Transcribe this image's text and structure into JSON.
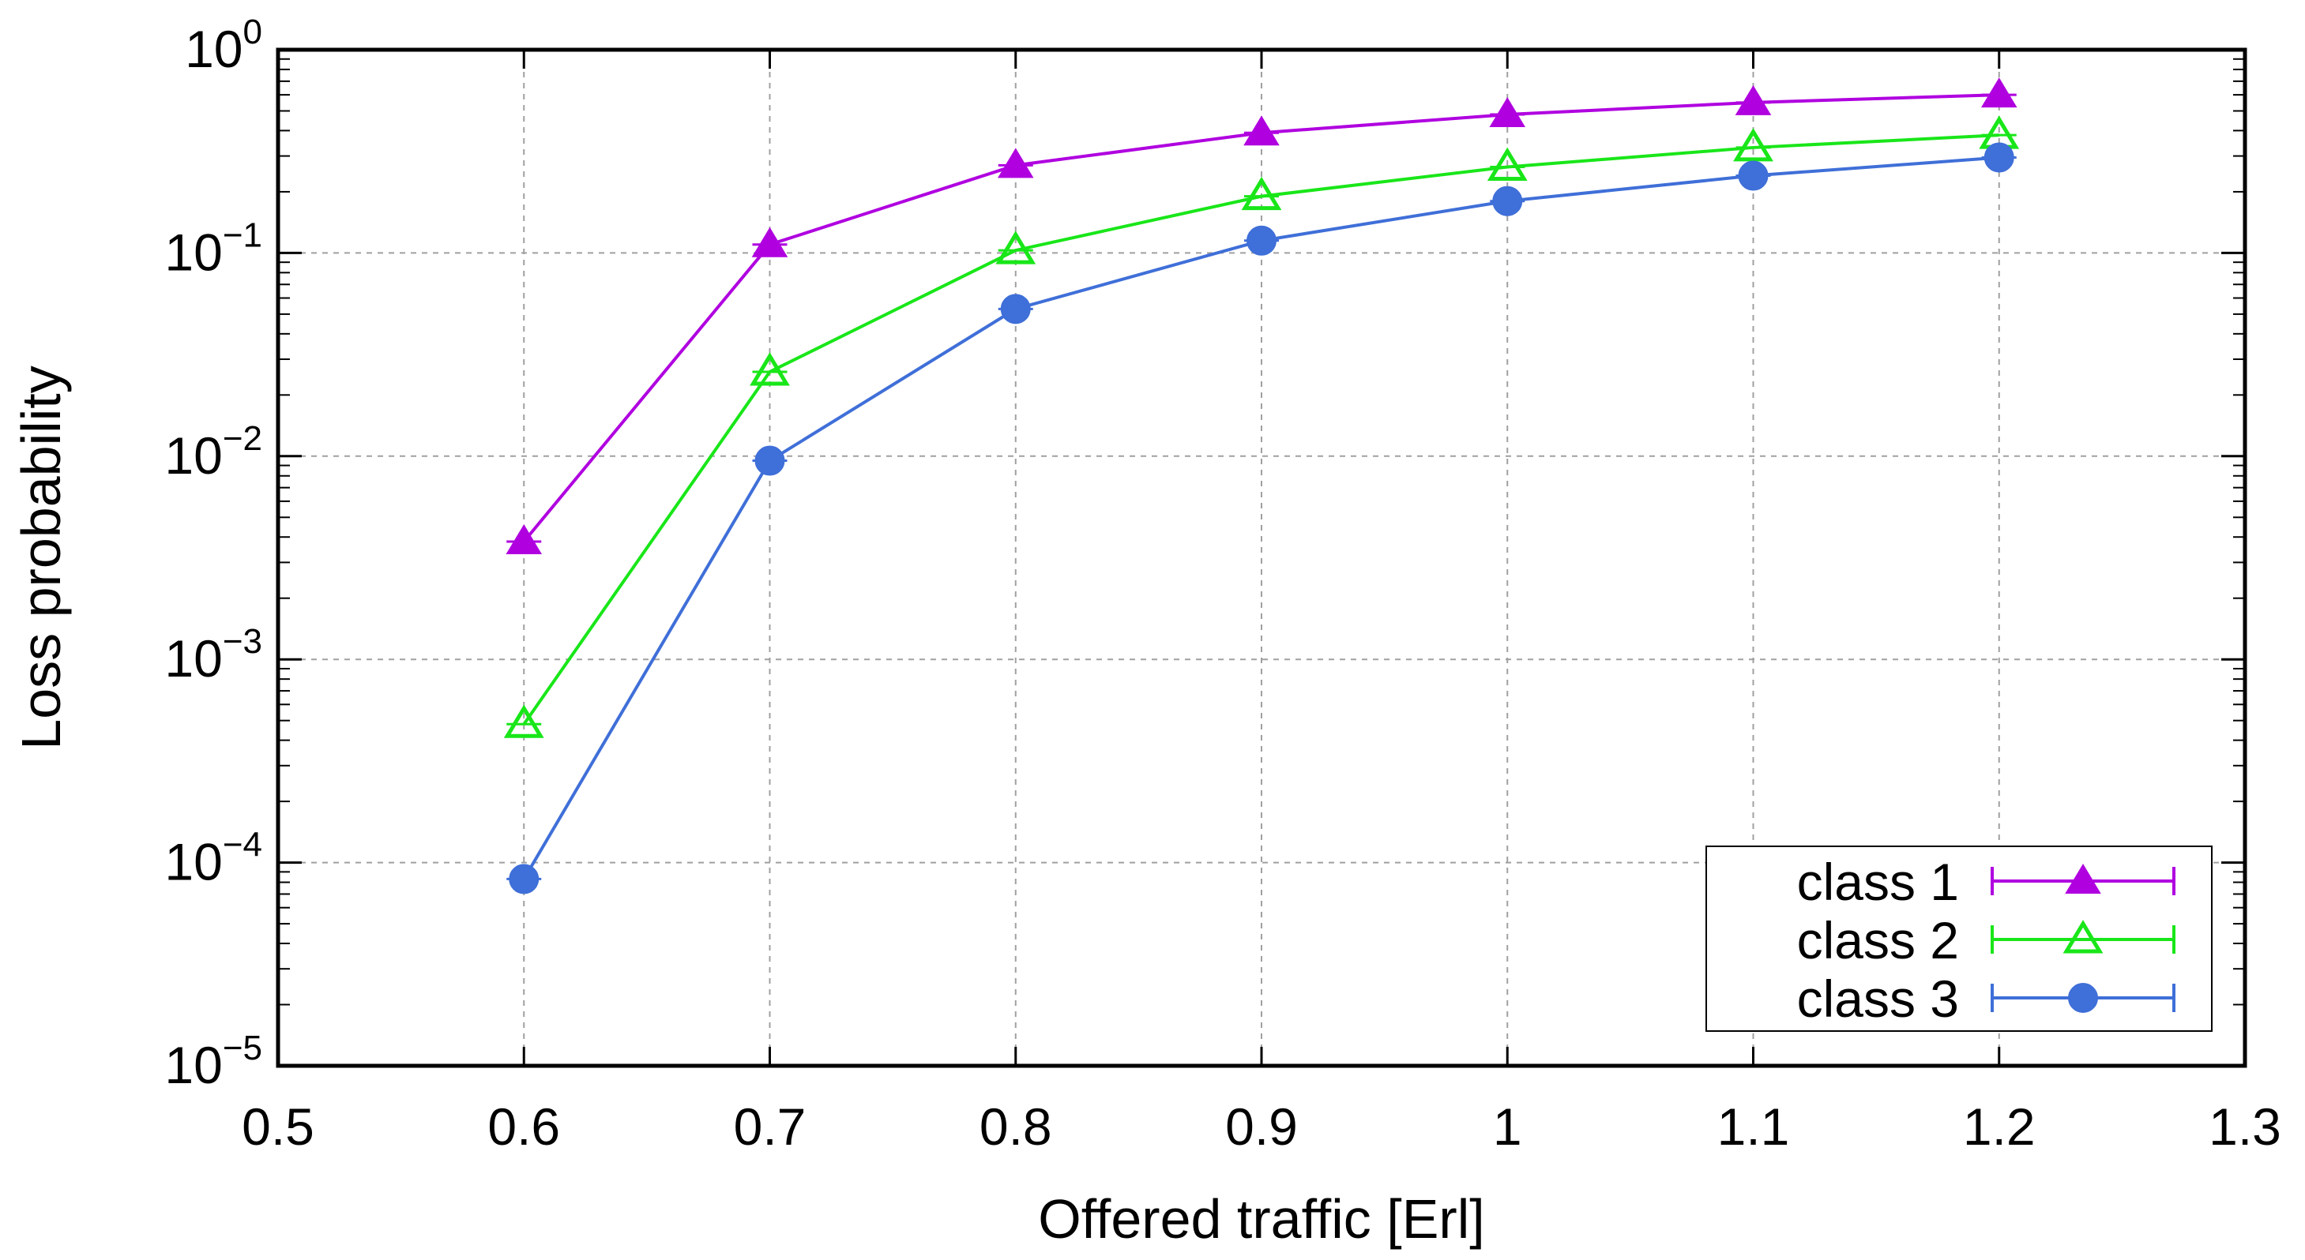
{
  "chart_data": {
    "type": "line",
    "xlabel": "Offered traffic [Erl]",
    "ylabel": "Loss probability",
    "xlim": [
      0.5,
      1.3
    ],
    "ylim": [
      1e-05,
      1
    ],
    "yscale": "log",
    "grid": true,
    "legend_position": "bottom-right",
    "x_ticks": [
      "0.5",
      "0.6",
      "0.7",
      "0.8",
      "0.9",
      "1",
      "1.1",
      "1.2",
      "1.3"
    ],
    "x_tick_values": [
      0.5,
      0.6,
      0.7,
      0.8,
      0.9,
      1.0,
      1.1,
      1.2,
      1.3
    ],
    "y_ticks": [
      {
        "base": "10",
        "exp": "0",
        "value": 1
      },
      {
        "base": "10",
        "exp": "−1",
        "value": 0.1
      },
      {
        "base": "10",
        "exp": "−2",
        "value": 0.01
      },
      {
        "base": "10",
        "exp": "−3",
        "value": 0.001
      },
      {
        "base": "10",
        "exp": "−4",
        "value": 0.0001
      },
      {
        "base": "10",
        "exp": "−5",
        "value": 1e-05
      }
    ],
    "x": [
      0.6,
      0.7,
      0.8,
      0.9,
      1.0,
      1.1,
      1.2
    ],
    "series": [
      {
        "name": "class 1",
        "color": "#b000e0",
        "marker": "triangle-filled",
        "values": [
          0.0038,
          0.11,
          0.27,
          0.39,
          0.48,
          0.55,
          0.6
        ]
      },
      {
        "name": "class 2",
        "color": "#19e619",
        "marker": "triangle-open",
        "values": [
          0.00048,
          0.026,
          0.103,
          0.19,
          0.265,
          0.33,
          0.38
        ]
      },
      {
        "name": "class 3",
        "color": "#3f6fd8",
        "marker": "circle-filled",
        "values": [
          8.3e-05,
          0.0095,
          0.053,
          0.115,
          0.18,
          0.24,
          0.295
        ]
      }
    ]
  }
}
